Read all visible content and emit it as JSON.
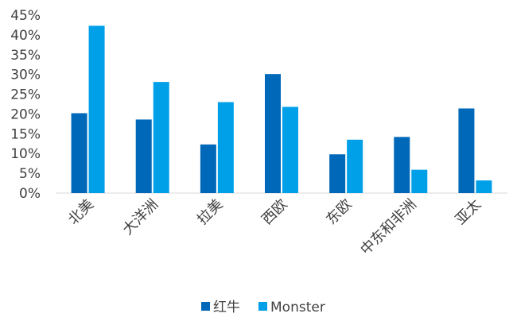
{
  "chart_data": {
    "type": "bar",
    "title": "",
    "xlabel": "",
    "ylabel": "",
    "categories": [
      "北美",
      "大洋洲",
      "拉美",
      "西欧",
      "东欧",
      "中东和非洲",
      "亚太"
    ],
    "series": [
      {
        "name": "红牛",
        "color": "#0068b8",
        "values": [
          20.2,
          18.6,
          12.3,
          30.1,
          9.8,
          14.2,
          21.4
        ]
      },
      {
        "name": "Monster",
        "color": "#00a0e9",
        "values": [
          42.3,
          28.1,
          23.0,
          21.8,
          13.5,
          5.9,
          3.2
        ]
      }
    ],
    "ylim": [
      0,
      45
    ],
    "yticks": [
      "0%",
      "5%",
      "10%",
      "15%",
      "20%",
      "25%",
      "30%",
      "35%",
      "40%",
      "45%"
    ],
    "grid": false,
    "legend_position": "bottom"
  }
}
